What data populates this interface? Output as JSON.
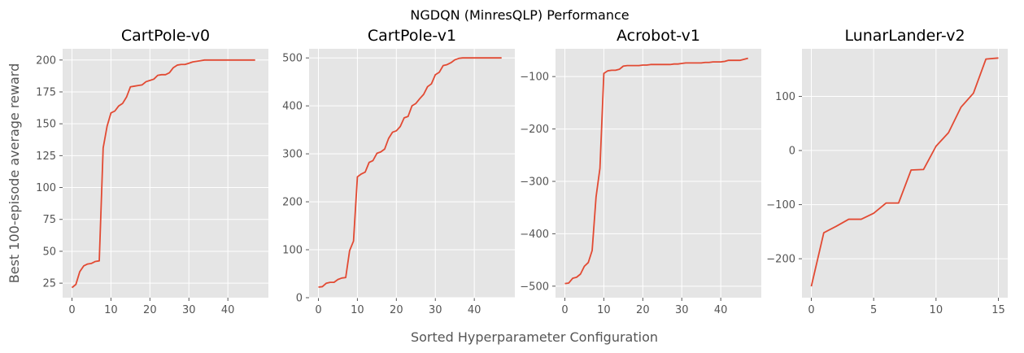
{
  "figure": {
    "suptitle": "NGDQN (MinresQLP) Performance",
    "xlabel": "Sorted Hyperparameter Configuration",
    "ylabel": "Best 100-episode average reward",
    "line_color": "#E24A33",
    "axes_background": "#E5E5E5",
    "grid_color": "#FFFFFF",
    "tick_color": "#555555"
  },
  "chart_data": [
    {
      "type": "line",
      "title": "CartPole-v0",
      "xlim": [
        -2.4,
        50.4
      ],
      "ylim": [
        13.6,
        208.8
      ],
      "xticks": [
        0,
        10,
        20,
        30,
        40
      ],
      "yticks": [
        25,
        50,
        75,
        100,
        125,
        150,
        175,
        200
      ],
      "grid": true,
      "x": [
        0,
        1,
        2,
        3,
        4,
        5,
        6,
        7,
        8,
        9,
        10,
        11,
        12,
        13,
        14,
        15,
        16,
        17,
        18,
        19,
        20,
        21,
        22,
        23,
        24,
        25,
        26,
        27,
        28,
        29,
        30,
        31,
        32,
        33,
        34,
        35,
        36,
        37,
        38,
        39,
        40,
        41,
        42,
        43,
        44,
        45,
        46,
        47
      ],
      "y": [
        21.5,
        24,
        34,
        38.5,
        40,
        40.5,
        42,
        42.5,
        131,
        148,
        158.5,
        160,
        164,
        166,
        171,
        179,
        179.5,
        180,
        180.5,
        183,
        184,
        185,
        188,
        188.5,
        188.5,
        190,
        194,
        196,
        196.5,
        196.5,
        197.5,
        198.5,
        199,
        199.5,
        200,
        200,
        200,
        200,
        200,
        200,
        200,
        200,
        200,
        200,
        200,
        200,
        200,
        200
      ]
    },
    {
      "type": "line",
      "title": "CartPole-v1",
      "xlim": [
        -2.4,
        50.4
      ],
      "ylim": [
        0,
        519
      ],
      "xticks": [
        0,
        10,
        20,
        30,
        40
      ],
      "yticks": [
        0,
        100,
        200,
        300,
        400,
        500
      ],
      "grid": true,
      "x": [
        0,
        1,
        2,
        3,
        4,
        5,
        6,
        7,
        8,
        9,
        10,
        11,
        12,
        13,
        14,
        15,
        16,
        17,
        18,
        19,
        20,
        21,
        22,
        23,
        24,
        25,
        26,
        27,
        28,
        29,
        30,
        31,
        32,
        33,
        34,
        35,
        36,
        37,
        38,
        39,
        40,
        41,
        42,
        43,
        44,
        45,
        46,
        47
      ],
      "y": [
        22,
        23,
        30,
        32,
        32,
        38,
        41,
        42,
        98,
        118,
        252,
        258,
        262,
        282,
        286,
        301,
        304,
        310,
        332,
        345,
        348,
        357,
        375,
        378,
        400,
        405,
        415,
        424,
        440,
        446,
        465,
        470,
        484,
        486,
        490,
        496,
        499,
        500,
        500,
        500,
        500,
        500,
        500,
        500,
        500,
        500,
        500,
        500
      ]
    },
    {
      "type": "line",
      "title": "Acrobot-v1",
      "xlim": [
        -2.4,
        50.4
      ],
      "ylim": [
        -522,
        -47
      ],
      "xticks": [
        0,
        10,
        20,
        30,
        40
      ],
      "yticks": [
        -100,
        -200,
        -300,
        -400,
        -500
      ],
      "grid": true,
      "x": [
        0,
        1,
        2,
        3,
        4,
        5,
        6,
        7,
        8,
        9,
        10,
        11,
        12,
        13,
        14,
        15,
        16,
        17,
        18,
        19,
        20,
        21,
        22,
        23,
        24,
        25,
        26,
        27,
        28,
        29,
        30,
        31,
        32,
        33,
        34,
        35,
        36,
        37,
        38,
        39,
        40,
        41,
        42,
        43,
        44,
        45,
        46,
        47
      ],
      "y": [
        -495,
        -494,
        -485,
        -483,
        -477,
        -462,
        -455,
        -432,
        -330,
        -275,
        -94,
        -89,
        -88,
        -88,
        -86,
        -80,
        -79,
        -79,
        -79,
        -79,
        -78,
        -78,
        -77,
        -77,
        -77,
        -77,
        -77,
        -77,
        -76,
        -76,
        -75,
        -74,
        -74,
        -74,
        -74,
        -74,
        -73,
        -73,
        -72,
        -72,
        -72,
        -71,
        -69,
        -69,
        -69,
        -69,
        -67,
        -65
      ]
    },
    {
      "type": "line",
      "title": "LunarLander-v2",
      "xlim": [
        -0.75,
        15.75
      ],
      "ylim": [
        -272,
        188
      ],
      "xticks": [
        0,
        5,
        10,
        15
      ],
      "yticks": [
        100,
        0,
        -100,
        -200
      ],
      "grid": true,
      "x": [
        0,
        1,
        2,
        3,
        4,
        5,
        6,
        7,
        8,
        9,
        10,
        11,
        12,
        13,
        14,
        15
      ],
      "y": [
        -251,
        -152,
        -140,
        -127,
        -127,
        -116,
        -97,
        -97,
        -36,
        -35,
        8,
        33,
        80,
        106,
        169,
        171
      ]
    }
  ]
}
